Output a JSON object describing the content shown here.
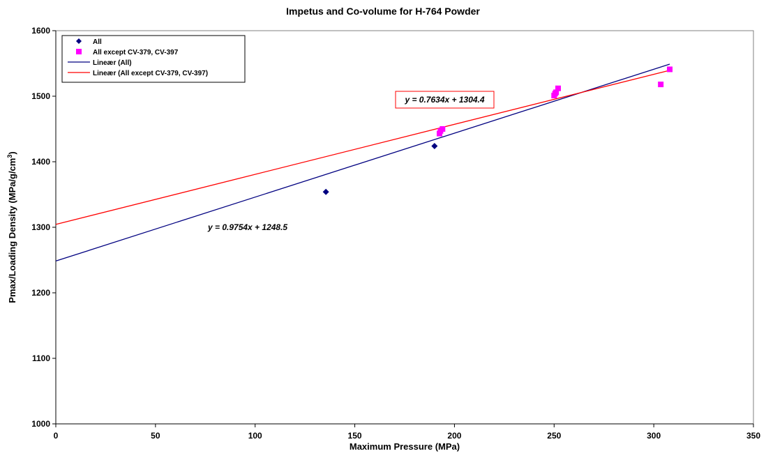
{
  "chart_data": {
    "type": "scatter",
    "title": "Impetus and Co-volume for H-764 Powder",
    "xlabel": "Maximum Pressure (MPa)",
    "ylabel_main": "Pmax/Loading Density (MPa/g/cm",
    "ylabel_sup": "3",
    "ylabel_end": ")",
    "xlim": [
      0,
      350
    ],
    "ylim": [
      1000,
      1600
    ],
    "xticks": [
      0,
      50,
      100,
      150,
      200,
      250,
      300,
      350
    ],
    "yticks": [
      1000,
      1100,
      1200,
      1300,
      1400,
      1500,
      1600
    ],
    "legend_position": "top-left",
    "series": [
      {
        "name": "All",
        "marker": "diamond",
        "color": "#000080",
        "points": [
          [
            135.5,
            1354
          ],
          [
            190,
            1424
          ]
        ]
      },
      {
        "name": "All except CV-379, CV-397",
        "marker": "square",
        "color": "#ff00ff",
        "points": [
          [
            192.5,
            1443
          ],
          [
            193,
            1447
          ],
          [
            194,
            1450
          ],
          [
            250,
            1501
          ],
          [
            250.5,
            1504
          ],
          [
            251,
            1506
          ],
          [
            252,
            1512
          ],
          [
            303.5,
            1518
          ],
          [
            308,
            1541
          ]
        ]
      }
    ],
    "trendlines": [
      {
        "name": "Lineær (All)",
        "color": "#000080",
        "slope": 0.9754,
        "intercept": 1248.5,
        "x_range": [
          0,
          308
        ],
        "equation": "y = 0.9754x + 1248.5",
        "boxed": false
      },
      {
        "name": "Lineær (All except CV-379, CV-397)",
        "color": "#ff0000",
        "slope": 0.7634,
        "intercept": 1304.4,
        "x_range": [
          0,
          308
        ],
        "equation": "y = 0.7634x + 1304.4",
        "boxed": true
      }
    ]
  }
}
